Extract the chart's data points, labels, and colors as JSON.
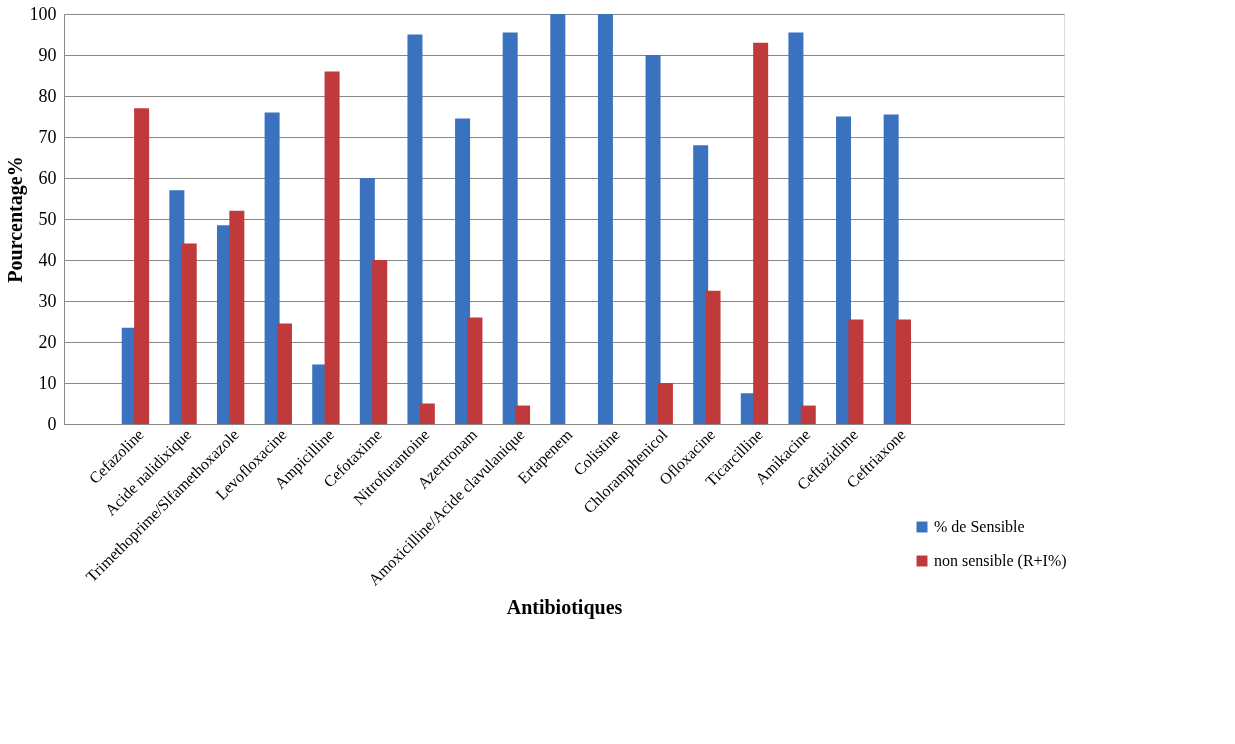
{
  "chart_data": {
    "type": "bar",
    "xlabel": "Antibiotiques",
    "ylabel": "Pourcentage%",
    "categories": [
      null,
      "Cefazoline",
      "Acide nalidixique",
      "Trimethoprime/Slfamethoxazole",
      "Levofloxacine",
      "Ampicilline",
      "Cefotaxime",
      "Nitrofurantoine",
      "Azertronam",
      "Amoxicilline/Acide clavulanique",
      "Ertapenem",
      "Colistine",
      "Chloramphenicol",
      "Ofloxacine",
      "Ticarcilline",
      "Amikacine",
      "Ceftazidime",
      "Ceftriaxone",
      null,
      null,
      null
    ],
    "series": [
      {
        "name": "% de Sensible",
        "color": "#3a72c0",
        "values": [
          null,
          23.5,
          57,
          48.5,
          76,
          14.5,
          60,
          95,
          74.5,
          95.5,
          100,
          100,
          90,
          68,
          7.5,
          95.5,
          75,
          75.5,
          null,
          null,
          null
        ]
      },
      {
        "name": "non sensible (R+I%)",
        "color": "#c0393b",
        "values": [
          null,
          77,
          44,
          52,
          24.5,
          86,
          40,
          5,
          26,
          4.5,
          0,
          0,
          10,
          32.5,
          93,
          4.5,
          25.5,
          25.5,
          null,
          null,
          null
        ]
      }
    ],
    "ylim": [
      0,
      100
    ],
    "yticks": [
      0,
      10,
      20,
      30,
      40,
      50,
      60,
      70,
      80,
      90,
      100
    ],
    "grid": "y",
    "legend": "bottom right"
  }
}
